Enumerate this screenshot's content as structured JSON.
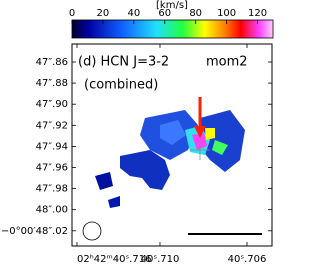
{
  "chart_data": {
    "type": "image",
    "colorbar_label": "[km/s]",
    "clim": [
      0,
      130
    ],
    "cticks": [
      0,
      20,
      40,
      60,
      80,
      100,
      120
    ],
    "panel_title": "(d) HCN J=3-2",
    "panel_subtitle": "(combined)",
    "panel_tag": "mom2",
    "y_tick_labels": [
      "47″.86",
      "47″.88",
      "47″.90",
      "47″.92",
      "47″.94",
      "47″.96",
      "47″.98",
      "48″.00",
      "−0°00′48″.02"
    ],
    "x_tick_labels": [
      "02ʰ42ᵐ40ˢ.716",
      "40ˢ.710",
      "40ˢ.706"
    ]
  }
}
